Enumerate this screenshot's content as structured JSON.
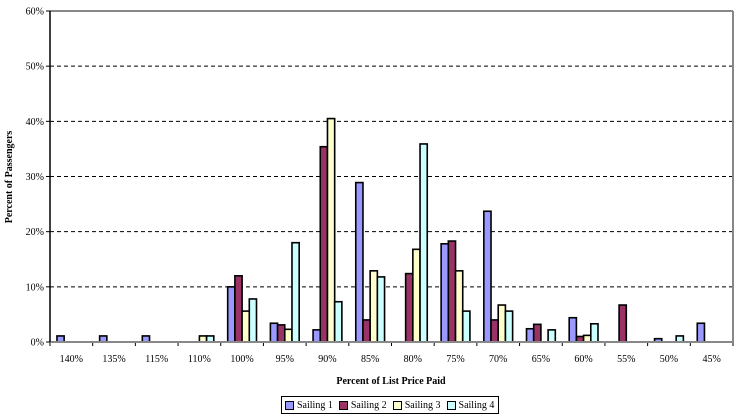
{
  "chart_data": {
    "type": "bar",
    "title": "",
    "xlabel": "Percent of List Price Paid",
    "ylabel": "Percent of Passengers",
    "ylim": [
      0,
      60
    ],
    "yticks": [
      "0%",
      "10%",
      "20%",
      "30%",
      "40%",
      "50%",
      "60%"
    ],
    "grid": "horizontal dashed",
    "legend_position": "bottom",
    "categories": [
      "140%",
      "135%",
      "115%",
      "110%",
      "100%",
      "95%",
      "90%",
      "85%",
      "80%",
      "75%",
      "70%",
      "65%",
      "60%",
      "55%",
      "50%",
      "45%"
    ],
    "series": [
      {
        "name": "Sailing 1",
        "color": "#9999ff",
        "values": [
          1.1,
          1.1,
          1.1,
          0,
          10.0,
          3.4,
          2.2,
          28.9,
          0,
          17.8,
          23.7,
          2.4,
          4.4,
          0,
          0.6,
          3.4
        ]
      },
      {
        "name": "Sailing 2",
        "color": "#993366",
        "values": [
          0,
          0,
          0,
          0,
          12.0,
          3.1,
          35.4,
          4.0,
          12.4,
          18.3,
          4.0,
          3.2,
          1.0,
          6.7,
          0,
          0
        ]
      },
      {
        "name": "Sailing 3",
        "color": "#ffffcc",
        "values": [
          0,
          0,
          0,
          1.1,
          5.6,
          2.3,
          40.5,
          12.9,
          16.8,
          12.9,
          6.7,
          0,
          1.2,
          0,
          0,
          0
        ]
      },
      {
        "name": "Sailing 4",
        "color": "#ccffff",
        "values": [
          0,
          0,
          0,
          1.1,
          7.8,
          18.0,
          7.3,
          11.8,
          35.9,
          5.6,
          5.6,
          2.2,
          3.3,
          0,
          1.1,
          0
        ]
      }
    ]
  },
  "legend": {
    "items": [
      {
        "label": "Sailing 1",
        "color": "#9999ff"
      },
      {
        "label": "Sailing 2",
        "color": "#993366"
      },
      {
        "label": "Sailing 3",
        "color": "#ffffcc"
      },
      {
        "label": "Sailing 4",
        "color": "#ccffff"
      }
    ]
  }
}
